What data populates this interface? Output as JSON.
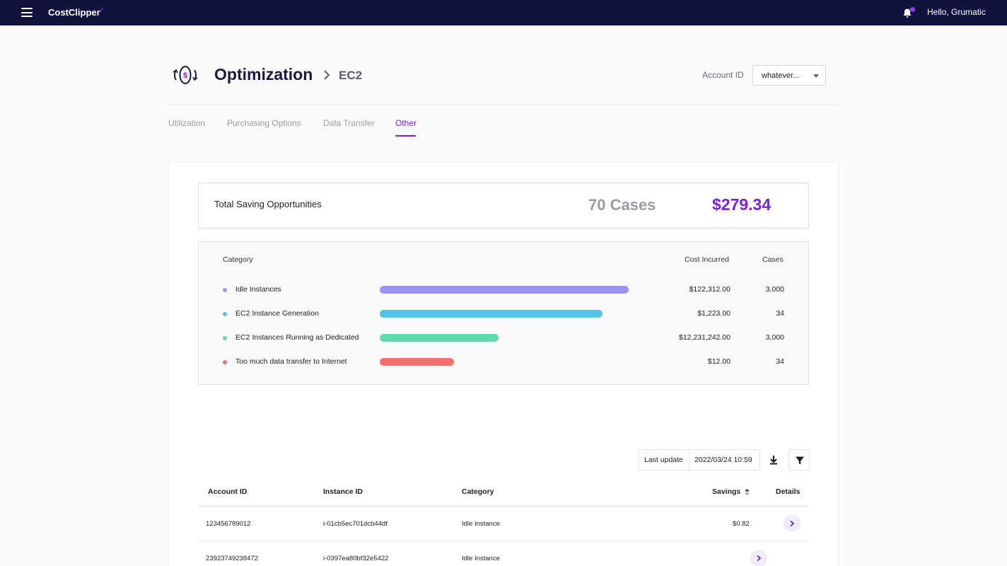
{
  "app": {
    "logo": "CostClipper",
    "logo_mark": "↙",
    "greeting": "Hello, Grumatic",
    "accent": "#7d1fe0",
    "nav_bg": "#12123f"
  },
  "header": {
    "title": "Optimization",
    "breadcrumb": "EC2",
    "account_label": "Account ID",
    "account_value": "whatever..."
  },
  "tabs": [
    {
      "label": "Utilization"
    },
    {
      "label": "Purchasing Options"
    },
    {
      "label": "Data Transfer"
    },
    {
      "label": "Other",
      "active": true
    }
  ],
  "summary": {
    "label": "Total Saving Opportunities",
    "cases": "70 Cases",
    "amount": "$279.34"
  },
  "categories": {
    "headers": {
      "category": "Category",
      "cost": "Cost Incurred",
      "cases": "Cases"
    },
    "rows": [
      {
        "name": "Idle Instances",
        "cost": "$122,312.00",
        "cases": "3,000",
        "color": "#9b93f3",
        "bar_fraction": 1.0
      },
      {
        "name": "EC2 Instance Generation",
        "cost": "$1,223.00",
        "cases": "34",
        "color": "#52c3e6",
        "bar_fraction": 0.895
      },
      {
        "name": "EC2 Instances Running as Dedicated",
        "cost": "$12,231,242.00",
        "cases": "3,000",
        "color": "#5ddbac",
        "bar_fraction": 0.477
      },
      {
        "name": "Too much data transfer to Internet",
        "cost": "$12.00",
        "cases": "34",
        "color": "#f56f6f",
        "bar_fraction": 0.298
      }
    ]
  },
  "last_update": {
    "label": "Last update",
    "value": "2022/03/24  10:59"
  },
  "table": {
    "headers": {
      "account": "Account ID",
      "instance": "Instance ID",
      "category": "Category",
      "savings": "Savings",
      "details": "Details"
    },
    "rows": [
      {
        "account": "123456789012",
        "instance": "i-01cb5ec701dcb44df",
        "category": "Idle Instance",
        "savings": "$0.82"
      },
      {
        "account": "23923749238472",
        "instance": "i-0397ea80bf32e5422",
        "category": "Idle Instance",
        "savings": ""
      }
    ]
  }
}
